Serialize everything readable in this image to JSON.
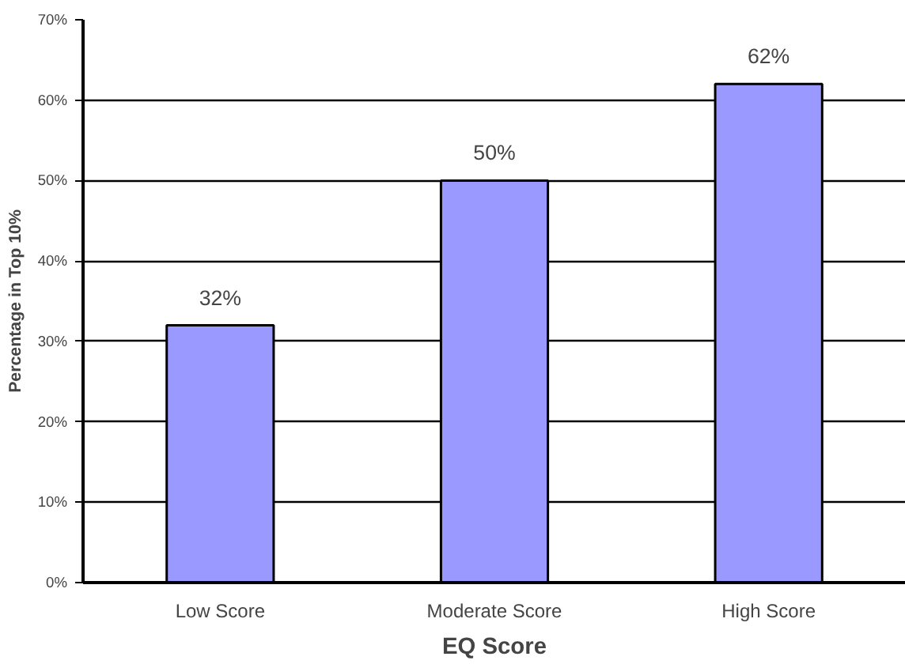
{
  "chart_data": {
    "type": "bar",
    "xlabel": "EQ Score",
    "ylabel": "Percentage in Top 10%",
    "categories": [
      "Low Score",
      "Moderate Score",
      "High Score"
    ],
    "values": [
      32,
      50,
      62
    ],
    "color": "#9999ff",
    "value_labels": [
      "32%",
      "50%",
      "62%"
    ],
    "ylim": [
      0,
      70
    ],
    "yticks": [
      {
        "value": 0,
        "label": "0%"
      },
      {
        "value": 10,
        "label": "10%"
      },
      {
        "value": 20,
        "label": "20%"
      },
      {
        "value": 30,
        "label": "30%"
      },
      {
        "value": 40,
        "label": "40%"
      },
      {
        "value": 50,
        "label": "50%"
      },
      {
        "value": 60,
        "label": "60%"
      },
      {
        "value": 70,
        "label": "70%"
      }
    ],
    "grid": "y"
  }
}
